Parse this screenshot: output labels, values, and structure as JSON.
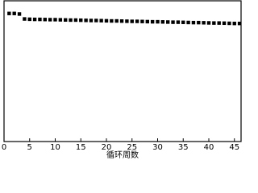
{
  "chart_data": {
    "type": "scatter",
    "x_label": "循环周数",
    "x": [
      1,
      2,
      3,
      4,
      5,
      6,
      7,
      8,
      9,
      10,
      11,
      12,
      13,
      14,
      15,
      16,
      17,
      18,
      19,
      20,
      21,
      22,
      23,
      24,
      25,
      26,
      27,
      28,
      29,
      30,
      31,
      32,
      33,
      34,
      35,
      36,
      37,
      38,
      39,
      40,
      41,
      42,
      43,
      44,
      45,
      46
    ],
    "values": [
      91.0,
      91.0,
      90.6,
      87.1,
      86.9,
      86.8,
      86.8,
      86.7,
      86.6,
      86.6,
      86.5,
      86.4,
      86.3,
      86.3,
      86.2,
      86.1,
      86.0,
      86.0,
      85.9,
      85.8,
      85.7,
      85.7,
      85.6,
      85.5,
      85.4,
      85.4,
      85.3,
      85.2,
      85.1,
      85.1,
      85.0,
      84.9,
      84.8,
      84.8,
      84.7,
      84.6,
      84.5,
      84.5,
      84.4,
      84.3,
      84.2,
      84.2,
      84.1,
      84.0,
      83.9,
      83.9
    ],
    "color": "#000000",
    "xlim": [
      0,
      46.3
    ],
    "ylim": [
      0,
      100
    ],
    "xticks": [
      0,
      5,
      10,
      15,
      20,
      25,
      30,
      35,
      40,
      45
    ]
  }
}
